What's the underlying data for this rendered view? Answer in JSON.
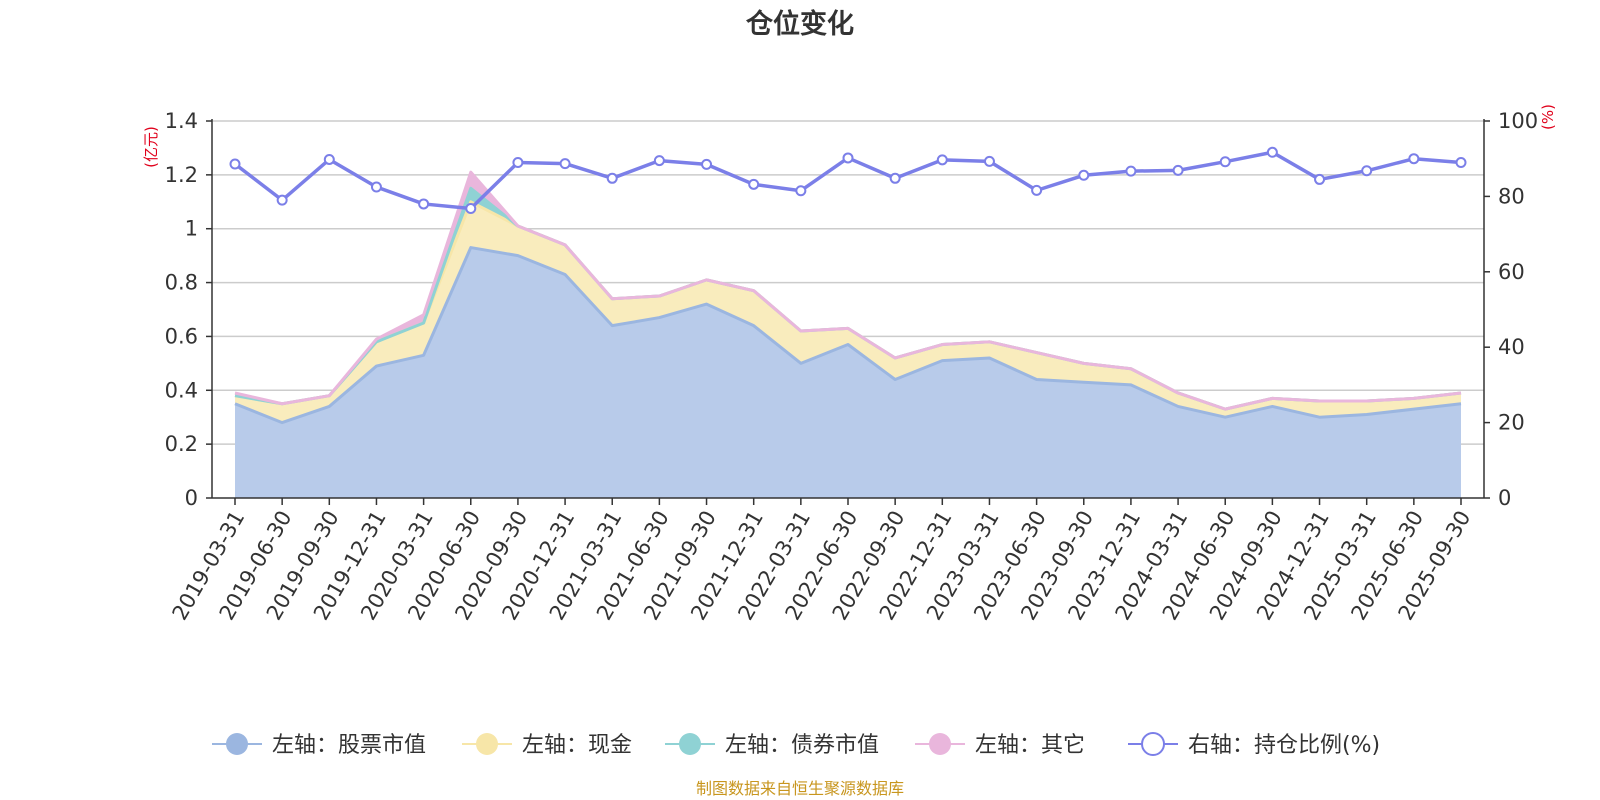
{
  "chart_data": {
    "type": "area",
    "title": "仓位变化",
    "source_note": "制图数据来自恒生聚源数据库",
    "categories": [
      "2019-03-31",
      "2019-06-30",
      "2019-09-30",
      "2019-12-31",
      "2020-03-31",
      "2020-06-30",
      "2020-09-30",
      "2020-12-31",
      "2021-03-31",
      "2021-06-30",
      "2021-09-30",
      "2021-12-31",
      "2022-03-31",
      "2022-06-30",
      "2022-09-30",
      "2022-12-31",
      "2023-03-31",
      "2023-06-30",
      "2023-09-30",
      "2023-12-31",
      "2024-03-31",
      "2024-06-30",
      "2024-09-30",
      "2024-12-31",
      "2025-03-31",
      "2025-06-30",
      "2025-09-30"
    ],
    "left_axis": {
      "unit": "(亿元)",
      "ylim": [
        0,
        1.4
      ],
      "ticks": [
        "0",
        "0.2",
        "0.4",
        "0.6",
        "0.8",
        "1",
        "1.2",
        "1.4"
      ]
    },
    "right_axis": {
      "unit": "(%)",
      "ylim": [
        0,
        100
      ],
      "ticks": [
        "0",
        "20",
        "40",
        "60",
        "80",
        "100"
      ]
    },
    "series": [
      {
        "name": "左轴：股票市值",
        "axis": "left",
        "color": "#9bb6e0",
        "fill": "#b8cbea",
        "values": [
          0.35,
          0.28,
          0.34,
          0.49,
          0.53,
          0.93,
          0.9,
          0.83,
          0.64,
          0.67,
          0.72,
          0.64,
          0.5,
          0.57,
          0.44,
          0.51,
          0.52,
          0.44,
          0.43,
          0.42,
          0.34,
          0.3,
          0.34,
          0.3,
          0.31,
          0.33,
          0.35
        ]
      },
      {
        "name": "左轴：现金",
        "axis": "left",
        "color": "#f7e6a8",
        "fill": "#f9ecbd",
        "values": [
          0.03,
          0.07,
          0.04,
          0.09,
          0.12,
          0.17,
          0.11,
          0.11,
          0.1,
          0.08,
          0.09,
          0.13,
          0.12,
          0.06,
          0.08,
          0.06,
          0.06,
          0.1,
          0.07,
          0.06,
          0.05,
          0.03,
          0.03,
          0.06,
          0.05,
          0.04,
          0.04
        ]
      },
      {
        "name": "左轴：债券市值",
        "axis": "left",
        "color": "#8fd2d4",
        "fill": "#8fd2d4",
        "values": [
          0,
          0,
          0,
          0,
          0,
          0.05,
          0,
          0,
          0,
          0,
          0,
          0,
          0,
          0,
          0,
          0,
          0,
          0,
          0,
          0,
          0,
          0,
          0,
          0,
          0,
          0,
          0
        ]
      },
      {
        "name": "左轴：其它",
        "axis": "left",
        "color": "#e9b6dc",
        "fill": "#e9b6dc",
        "values": [
          0.01,
          0,
          0,
          0.01,
          0.03,
          0.06,
          0,
          0,
          0,
          0,
          0,
          0,
          0,
          0,
          0,
          0,
          0,
          0,
          0,
          0,
          0,
          0,
          0,
          0,
          0,
          0,
          0
        ]
      },
      {
        "name": "右轴：持仓比例(%)",
        "axis": "right",
        "color": "#7b7fe8",
        "values": [
          88.6,
          79.0,
          89.8,
          82.5,
          78.0,
          76.8,
          89.0,
          88.7,
          84.8,
          89.5,
          88.5,
          83.2,
          81.5,
          90.2,
          84.8,
          89.7,
          89.3,
          81.6,
          85.6,
          86.7,
          86.9,
          89.2,
          91.7,
          84.5,
          86.8,
          90.0,
          89.0
        ]
      }
    ]
  }
}
